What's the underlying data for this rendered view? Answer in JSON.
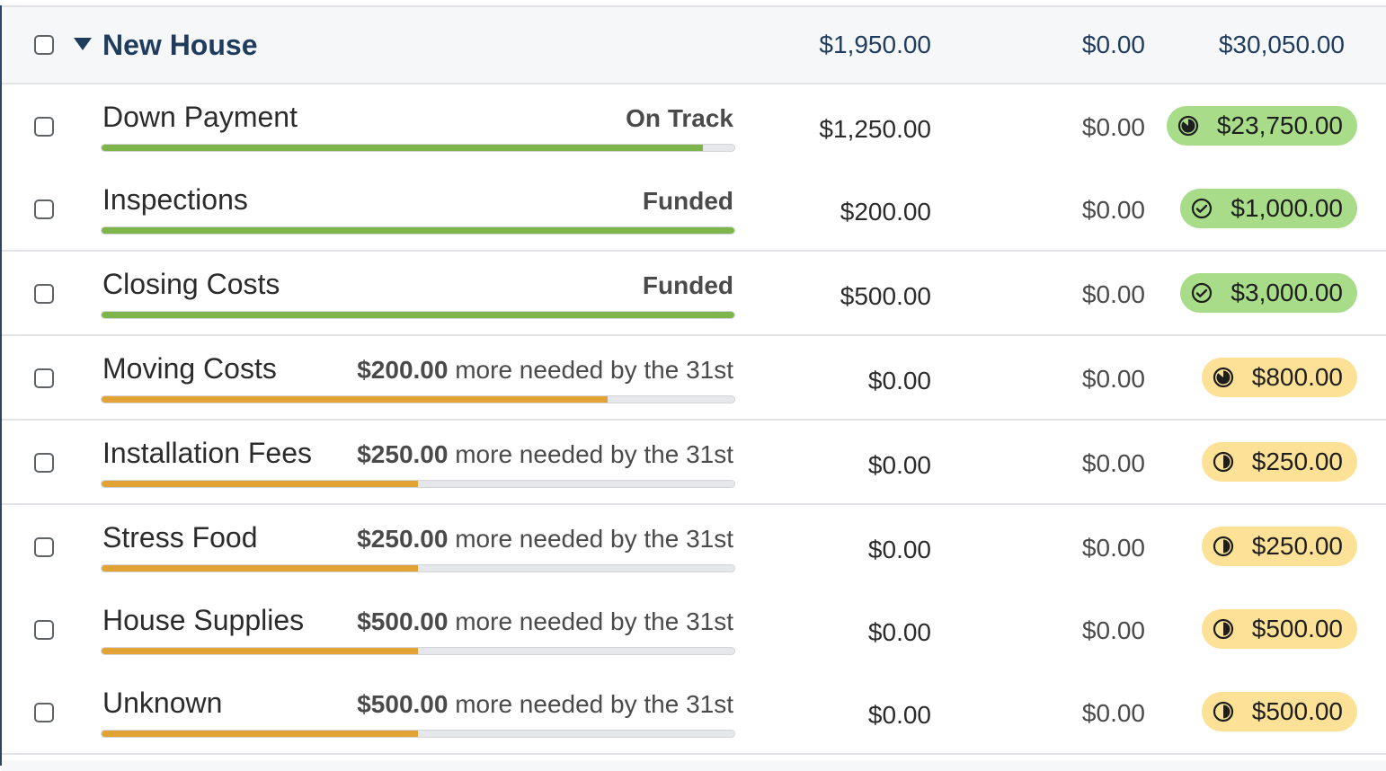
{
  "group": {
    "name": "New House",
    "assigned": "$1,950.00",
    "activity": "$0.00",
    "available": "$30,050.00"
  },
  "categories": [
    {
      "name": "Down Payment",
      "status_bold": "On Track",
      "status_rest": "",
      "progress": 0.95,
      "color": "green",
      "assigned": "$1,250.00",
      "activity": "$0.00",
      "available": "$23,750.00",
      "pill": "green",
      "icon": "progress-pie-icon"
    },
    {
      "name": "Inspections",
      "status_bold": "Funded",
      "status_rest": "",
      "progress": 1.0,
      "color": "green",
      "assigned": "$200.00",
      "activity": "$0.00",
      "available": "$1,000.00",
      "pill": "green",
      "icon": "check-circle-icon"
    },
    {
      "name": "Closing Costs",
      "status_bold": "Funded",
      "status_rest": "",
      "progress": 1.0,
      "color": "green",
      "assigned": "$500.00",
      "activity": "$0.00",
      "available": "$3,000.00",
      "pill": "green",
      "icon": "check-circle-icon"
    },
    {
      "name": "Moving Costs",
      "status_bold": "$200.00",
      "status_rest": " more needed by the 31st",
      "progress": 0.8,
      "color": "orange",
      "assigned": "$0.00",
      "activity": "$0.00",
      "available": "$800.00",
      "pill": "yellow",
      "icon": "progress-pie-icon"
    },
    {
      "name": "Installation Fees",
      "status_bold": "$250.00",
      "status_rest": " more needed by the 31st",
      "progress": 0.5,
      "color": "orange",
      "assigned": "$0.00",
      "activity": "$0.00",
      "available": "$250.00",
      "pill": "yellow",
      "icon": "half-circle-icon"
    },
    {
      "name": "Stress Food",
      "status_bold": "$250.00",
      "status_rest": " more needed by the 31st",
      "progress": 0.5,
      "color": "orange",
      "assigned": "$0.00",
      "activity": "$0.00",
      "available": "$250.00",
      "pill": "yellow",
      "icon": "half-circle-icon"
    },
    {
      "name": "House Supplies",
      "status_bold": "$500.00",
      "status_rest": " more needed by the 31st",
      "progress": 0.5,
      "color": "orange",
      "assigned": "$0.00",
      "activity": "$0.00",
      "available": "$500.00",
      "pill": "yellow",
      "icon": "half-circle-icon"
    },
    {
      "name": "Unknown",
      "status_bold": "$500.00",
      "status_rest": " more needed by the 31st",
      "progress": 0.5,
      "color": "orange",
      "assigned": "$0.00",
      "activity": "$0.00",
      "available": "$500.00",
      "pill": "yellow",
      "icon": "half-circle-icon"
    }
  ],
  "colors": {
    "group_text": "#1f3c5e",
    "funded_green": "#7db54a",
    "underfunded_orange": "#e2a334",
    "pill_green": "#a8dc88",
    "pill_yellow": "#fde197"
  }
}
